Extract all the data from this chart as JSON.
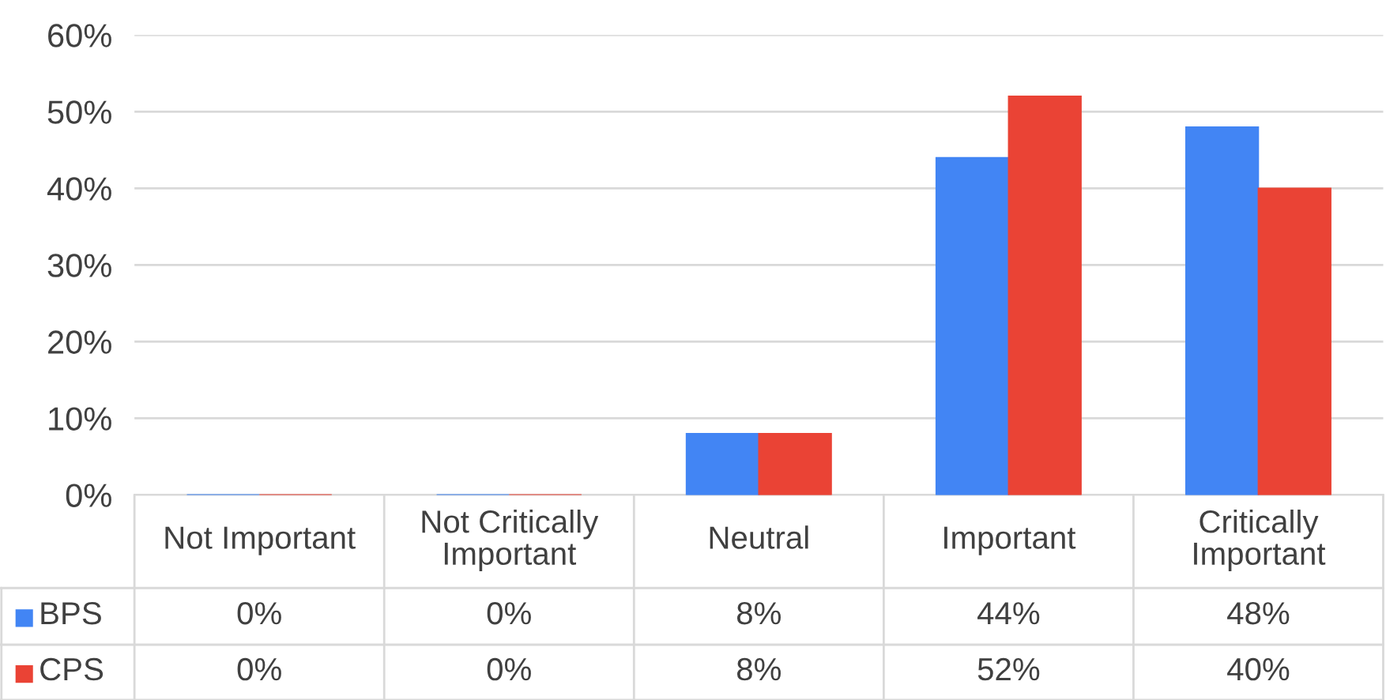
{
  "chart_data": {
    "type": "bar",
    "categories": [
      "Not Important",
      "Not Critically\nImportant",
      "Neutral",
      "Important",
      "Critically\nImportant"
    ],
    "series": [
      {
        "name": "BPS",
        "color": "#4285f4",
        "values": [
          0,
          0,
          8,
          44,
          48
        ],
        "value_labels": [
          "0%",
          "0%",
          "8%",
          "44%",
          "48%"
        ]
      },
      {
        "name": "CPS",
        "color": "#ea4335",
        "values": [
          0,
          0,
          8,
          52,
          40
        ],
        "value_labels": [
          "0%",
          "0%",
          "8%",
          "52%",
          "40%"
        ]
      }
    ],
    "ylim": [
      0,
      60
    ],
    "yticks": [
      {
        "value": 0,
        "label": "0%"
      },
      {
        "value": 10,
        "label": "10%"
      },
      {
        "value": 20,
        "label": "20%"
      },
      {
        "value": 30,
        "label": "30%"
      },
      {
        "value": 40,
        "label": "40%"
      },
      {
        "value": 50,
        "label": "50%"
      },
      {
        "value": 60,
        "label": "60%"
      }
    ],
    "grid": "y",
    "legend": "bottom left"
  }
}
